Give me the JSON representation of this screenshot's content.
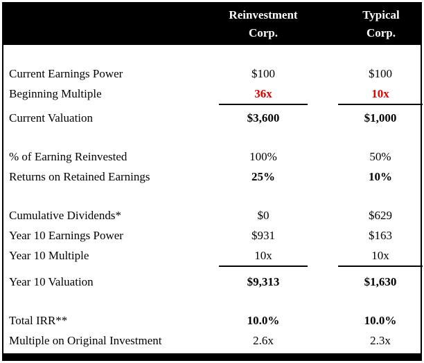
{
  "colors": {
    "accent_red": "#e00000",
    "band_black": "#000000",
    "background": "#ffffff"
  },
  "header": {
    "col1_line1": "Reinvestment",
    "col1_line2": "Corp.",
    "col2_line1": "Typical",
    "col2_line2": "Corp."
  },
  "table": {
    "rows": [
      {
        "label": "Current Earnings Power",
        "v1": "$100",
        "v2": "$100"
      },
      {
        "label": "Beginning Multiple",
        "v1": "36x",
        "v2": "10x"
      },
      {
        "label": "Current Valuation",
        "v1": "$3,600",
        "v2": "$1,000"
      },
      {
        "label": "% of Earning Reinvested",
        "v1": "100%",
        "v2": "50%"
      },
      {
        "label": "Returns on Retained Earnings",
        "v1": "25%",
        "v2": "10%"
      },
      {
        "label": "Cumulative Dividends*",
        "v1": "$0",
        "v2": "$629"
      },
      {
        "label": "Year 10 Earnings Power",
        "v1": "$931",
        "v2": "$163"
      },
      {
        "label": "Year 10 Multiple",
        "v1": "10x",
        "v2": "10x"
      },
      {
        "label": "Year 10 Valuation",
        "v1": "$9,313",
        "v2": "$1,630"
      },
      {
        "label": "Total IRR**",
        "v1": "10.0%",
        "v2": "10.0%"
      },
      {
        "label": "Multiple on Original Investment",
        "v1": "2.6x",
        "v2": "2.3x"
      }
    ]
  }
}
